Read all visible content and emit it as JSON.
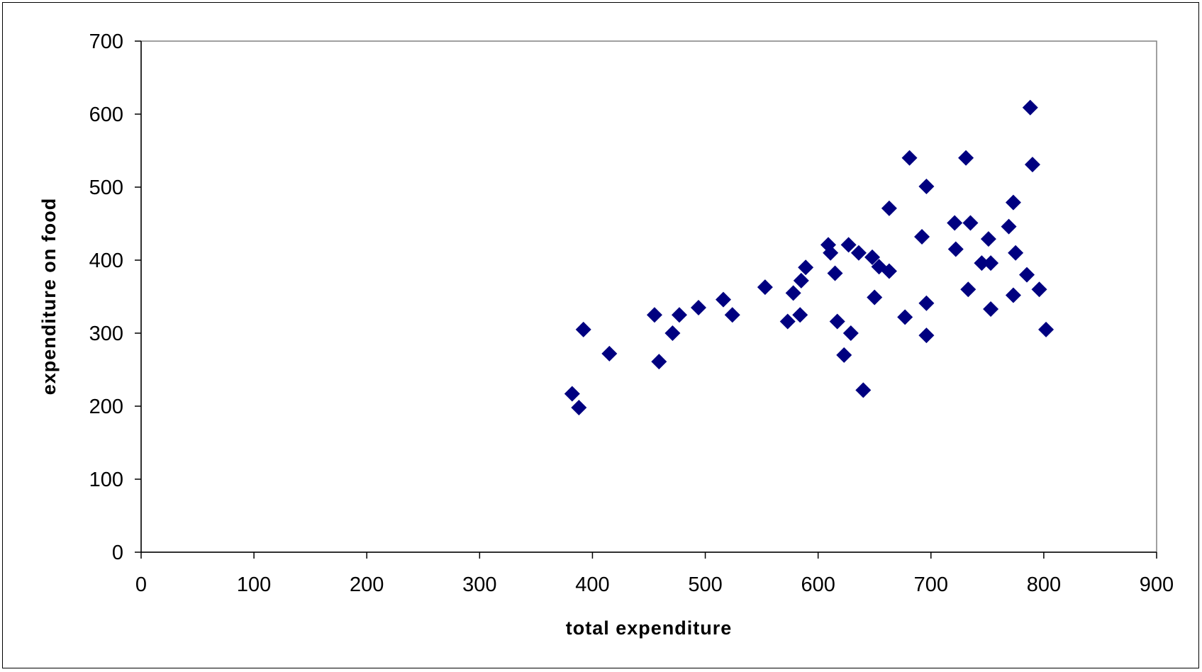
{
  "chart_data": {
    "type": "scatter",
    "xlabel": "total expenditure",
    "ylabel": "expenditure on food",
    "xlim": [
      0,
      900
    ],
    "ylim": [
      0,
      700
    ],
    "x_ticks": [
      "0",
      "100",
      "200",
      "300",
      "400",
      "500",
      "600",
      "700",
      "800",
      "900"
    ],
    "y_ticks": [
      "0",
      "100",
      "200",
      "300",
      "400",
      "500",
      "600",
      "700"
    ],
    "grid": false,
    "legend": "none",
    "marker": "diamond",
    "marker_color": "#000080",
    "series": [
      {
        "points": [
          [
            382,
            217
          ],
          [
            388,
            198
          ],
          [
            392,
            305
          ],
          [
            415,
            272
          ],
          [
            455,
            325
          ],
          [
            459,
            261
          ],
          [
            471,
            300
          ],
          [
            477,
            325
          ],
          [
            494,
            335
          ],
          [
            516,
            346
          ],
          [
            524,
            325
          ],
          [
            553,
            363
          ],
          [
            573,
            316
          ],
          [
            578,
            355
          ],
          [
            584,
            325
          ],
          [
            585,
            372
          ],
          [
            589,
            390
          ],
          [
            609,
            421
          ],
          [
            611,
            410
          ],
          [
            615,
            382
          ],
          [
            617,
            316
          ],
          [
            623,
            270
          ],
          [
            627,
            421
          ],
          [
            629,
            300
          ],
          [
            636,
            410
          ],
          [
            640,
            222
          ],
          [
            648,
            404
          ],
          [
            650,
            349
          ],
          [
            654,
            391
          ],
          [
            663,
            385
          ],
          [
            663,
            471
          ],
          [
            677,
            322
          ],
          [
            681,
            540
          ],
          [
            692,
            432
          ],
          [
            696,
            501
          ],
          [
            696,
            341
          ],
          [
            696,
            297
          ],
          [
            721,
            451
          ],
          [
            722,
            415
          ],
          [
            731,
            540
          ],
          [
            733,
            360
          ],
          [
            735,
            451
          ],
          [
            745,
            396
          ],
          [
            751,
            429
          ],
          [
            753,
            396
          ],
          [
            753,
            333
          ],
          [
            769,
            446
          ],
          [
            773,
            479
          ],
          [
            773,
            352
          ],
          [
            775,
            410
          ],
          [
            785,
            380
          ],
          [
            788,
            609
          ],
          [
            790,
            531
          ],
          [
            796,
            360
          ],
          [
            802,
            305
          ]
        ]
      }
    ]
  }
}
